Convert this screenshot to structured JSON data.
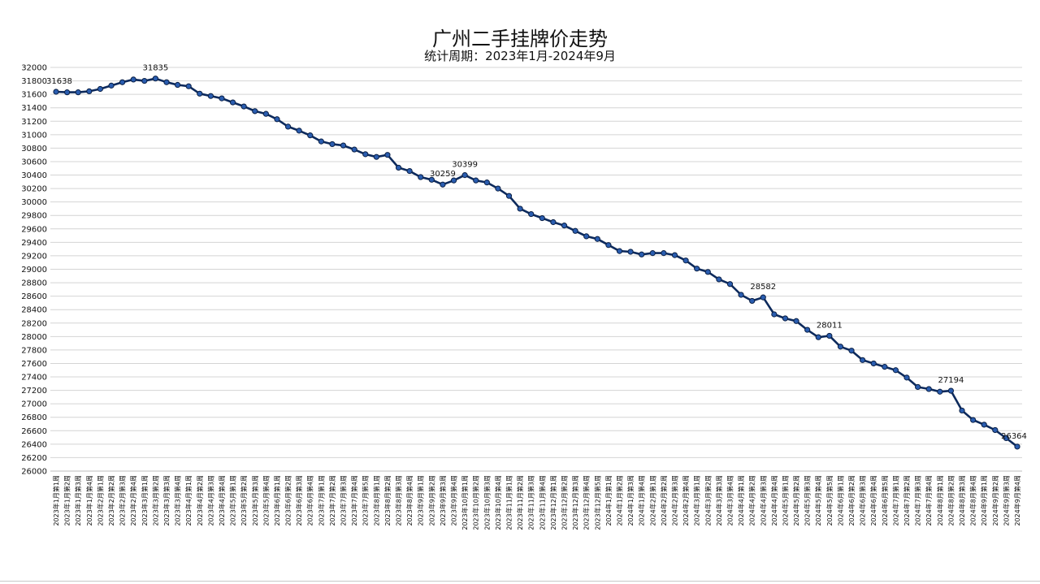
{
  "chart_data": {
    "type": "line",
    "title": "广州二手挂牌价走势",
    "subtitle": "统计周期：2023年1月-2024年9月",
    "xlabel": "",
    "ylabel": "",
    "ylim": [
      26000,
      32000
    ],
    "yticks": [
      26000,
      26200,
      26400,
      26600,
      26800,
      27000,
      27200,
      27400,
      27600,
      27800,
      28000,
      28200,
      28400,
      28600,
      28800,
      29000,
      29200,
      29400,
      29600,
      29800,
      30000,
      30200,
      30400,
      30600,
      30800,
      31000,
      31200,
      31400,
      31600,
      31800,
      32000
    ],
    "grid": true,
    "legend": "none",
    "line_color": "#0d2a5c",
    "marker_color": "#2a5db0",
    "categories": [
      "2023年1月第1周",
      "2023年1月第2周",
      "2023年1月第3周",
      "2023年1月第4周",
      "2023年2月第1周",
      "2023年2月第2周",
      "2023年2月第3周",
      "2023年2月第4周",
      "2023年3月第1周",
      "2023年3月第2周",
      "2023年3月第3周",
      "2023年3月第4周",
      "2023年4月第1周",
      "2023年4月第2周",
      "2023年4月第3周",
      "2023年4月第4周",
      "2023年5月第1周",
      "2023年5月第2周",
      "2023年5月第3周",
      "2023年5月第4周",
      "2023年6月第1周",
      "2023年6月第2周",
      "2023年6月第3周",
      "2023年6月第4周",
      "2023年7月第1周",
      "2023年7月第2周",
      "2023年7月第3周",
      "2023年7月第4周",
      "2023年7月第5周",
      "2023年8月第1周",
      "2023年8月第2周",
      "2023年8月第3周",
      "2023年8月第4周",
      "2023年9月第1周",
      "2023年9月第2周",
      "2023年9月第3周",
      "2023年9月第4周",
      "2023年10月第1周",
      "2023年10月第2周",
      "2023年10月第3周",
      "2023年10月第4周",
      "2023年11月第1周",
      "2023年11月第2周",
      "2023年11月第3周",
      "2023年11月第4周",
      "2023年12月第1周",
      "2023年12月第2周",
      "2023年12月第3周",
      "2023年12月第4周",
      "2023年12月第5周",
      "2024年1月第1周",
      "2024年1月第2周",
      "2024年1月第3周",
      "2024年1月第4周",
      "2024年2月第1周",
      "2024年2月第2周",
      "2024年2月第3周",
      "2024年2月第4周",
      "2024年3月第1周",
      "2024年3月第2周",
      "2024年3月第3周",
      "2024年3月第4周",
      "2024年4月第1周",
      "2024年4月第2周",
      "2024年4月第3周",
      "2024年4月第4周",
      "2024年5月第1周",
      "2024年5月第2周",
      "2024年5月第3周",
      "2024年5月第4周",
      "2024年5月第5周",
      "2024年6月第1周",
      "2024年6月第2周",
      "2024年6月第3周",
      "2024年6月第4周",
      "2024年6月第5周",
      "2024年7月第1周",
      "2024年7月第2周",
      "2024年7月第3周",
      "2024年7月第4周",
      "2024年8月第1周",
      "2024年8月第2周",
      "2024年8月第3周",
      "2024年8月第4周",
      "2024年9月第1周",
      "2024年9月第2周",
      "2024年9月第3周",
      "2024年9月第4周"
    ],
    "values": [
      31638,
      31630,
      31630,
      31645,
      31680,
      31730,
      31780,
      31820,
      31800,
      31835,
      31780,
      31740,
      31720,
      31610,
      31575,
      31540,
      31480,
      31420,
      31350,
      31310,
      31230,
      31120,
      31060,
      30990,
      30900,
      30860,
      30840,
      30780,
      30710,
      30670,
      30700,
      30510,
      30460,
      30370,
      30330,
      30259,
      30320,
      30399,
      30320,
      30290,
      30200,
      30090,
      29900,
      29820,
      29760,
      29700,
      29650,
      29570,
      29490,
      29450,
      29360,
      29270,
      29260,
      29220,
      29240,
      29240,
      29210,
      29130,
      29010,
      28960,
      28850,
      28780,
      28620,
      28530,
      28582,
      28330,
      28270,
      28230,
      28100,
      27990,
      28011,
      27850,
      27790,
      27650,
      27600,
      27550,
      27500,
      27390,
      27250,
      27220,
      27180,
      27194,
      26900,
      26760,
      26690,
      26610,
      26490,
      26364
    ],
    "annotations": [
      {
        "index": 0,
        "label": "31638"
      },
      {
        "index": 9,
        "label": "31835"
      },
      {
        "index": 35,
        "label": "30259"
      },
      {
        "index": 37,
        "label": "30399"
      },
      {
        "index": 64,
        "label": "28582"
      },
      {
        "index": 70,
        "label": "28011"
      },
      {
        "index": 81,
        "label": "27194"
      },
      {
        "index": 87,
        "label": "26364"
      }
    ]
  }
}
